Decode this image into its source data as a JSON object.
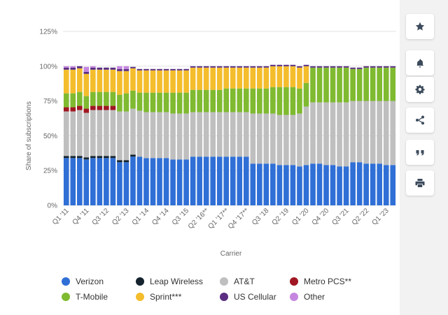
{
  "chart_data": {
    "type": "bar",
    "stacked": true,
    "title": "",
    "xlabel": "Carrier",
    "ylabel": "Share of subscriptions",
    "ylim": [
      0,
      125
    ],
    "yticks": [
      0,
      25,
      50,
      75,
      100,
      125
    ],
    "ytick_labels": [
      "0%",
      "25%",
      "50%",
      "75%",
      "100%",
      "125%"
    ],
    "grid": true,
    "legend_position": "bottom",
    "categories": [
      "Q1 '11",
      "Q2 '11",
      "Q3 '11",
      "Q4 '11",
      "Q1 '12",
      "Q2 '12",
      "Q3 '12",
      "Q4 '12",
      "Q1 '13",
      "Q2 '13",
      "Q3 '13",
      "Q4 '13",
      "Q1 '14",
      "Q2 '14",
      "Q3 '14",
      "Q4 '14",
      "Q1 '15",
      "Q2 '15",
      "Q3 '15",
      "Q4 '15",
      "Q1 '16",
      "Q2 '16**",
      "Q3 '16",
      "Q4 '16",
      "Q1 '17**",
      "Q2 '17",
      "Q3 '17",
      "Q4 '17**",
      "Q1 '18",
      "Q2 '18",
      "Q3 '18",
      "Q4 '18",
      "Q1 '19",
      "Q2 '19",
      "Q3 '19",
      "Q4 '19",
      "Q1 '20",
      "Q2 '20",
      "Q3 '20",
      "Q4 '20",
      "Q1 '21",
      "Q2 '21",
      "Q3 '21",
      "Q4 '21",
      "Q1 '22",
      "Q2 '22",
      "Q3 '22",
      "Q4 '22",
      "Q1 '23",
      "Q2 '23"
    ],
    "x_tick_labels": [
      "Q1 '11",
      "Q4 '11",
      "Q3 '12",
      "Q2 '13",
      "Q1 '14",
      "Q4 '14",
      "Q3 '15",
      "Q2 '16**",
      "Q1 '17**",
      "Q4 '17**",
      "Q3 '18",
      "Q2 '19",
      "Q1 '20",
      "Q4 '20",
      "Q3 '21",
      "Q2 '22",
      "Q1 '23"
    ],
    "series": [
      {
        "name": "Verizon",
        "color": "#2f6fd6",
        "values": [
          34,
          34,
          34,
          33,
          34,
          34,
          34,
          34,
          31,
          31,
          35,
          35,
          34,
          34,
          34,
          34,
          33,
          33,
          33,
          35,
          35,
          35,
          35,
          35,
          35,
          35,
          35,
          35,
          30,
          30,
          30,
          30,
          29,
          29,
          29,
          28,
          29,
          30,
          30,
          29,
          29,
          28,
          28,
          31,
          31,
          30,
          30,
          30,
          29,
          29
        ]
      },
      {
        "name": "Leap Wireless",
        "color": "#14232e",
        "values": [
          1.5,
          1.5,
          1.5,
          1.5,
          1.5,
          1.5,
          1.5,
          1.5,
          1.5,
          1.5,
          1.5,
          0,
          0,
          0,
          0,
          0,
          0,
          0,
          0,
          0,
          0,
          0,
          0,
          0,
          0,
          0,
          0,
          0,
          0,
          0,
          0,
          0,
          0,
          0,
          0,
          0,
          0,
          0,
          0,
          0,
          0,
          0,
          0,
          0,
          0,
          0,
          0,
          0,
          0,
          0
        ]
      },
      {
        "name": "AT&T",
        "color": "#bfbfbf",
        "values": [
          32,
          32,
          33,
          32,
          33,
          33,
          33,
          33,
          35,
          35,
          33,
          33,
          33,
          33,
          33,
          33,
          33,
          33,
          33,
          32,
          32,
          32,
          32,
          32,
          32,
          32,
          32,
          32,
          36,
          36,
          36,
          36,
          36,
          36,
          36,
          38,
          42,
          44,
          44,
          45,
          45,
          46,
          46,
          44,
          44,
          45,
          45,
          45,
          46,
          46
        ]
      },
      {
        "name": "Metro PCS**",
        "color": "#a01622",
        "values": [
          3,
          3,
          3,
          3,
          3,
          3,
          3,
          3,
          0,
          0,
          0,
          0,
          0,
          0,
          0,
          0,
          0,
          0,
          0,
          0,
          0,
          0,
          0,
          0,
          0,
          0,
          0,
          0,
          0,
          0,
          0,
          0,
          0,
          0,
          0,
          0,
          0,
          0,
          0,
          0,
          0,
          0,
          0,
          0,
          0,
          0,
          0,
          0,
          0,
          0
        ]
      },
      {
        "name": "T-Mobile",
        "color": "#7fba30",
        "values": [
          10,
          10,
          10,
          9,
          10,
          10,
          10,
          10,
          12,
          13,
          13,
          13,
          14,
          14,
          14,
          14,
          15,
          15,
          15,
          16,
          16,
          16,
          16,
          16,
          17,
          17,
          17,
          17,
          18,
          18,
          18,
          19,
          20,
          20,
          20,
          18,
          17,
          25,
          25,
          25,
          25,
          25,
          25,
          23,
          23,
          24,
          24,
          24,
          24,
          24
        ]
      },
      {
        "name": "Sprint***",
        "color": "#f4bd2c",
        "values": [
          17,
          17,
          17,
          16,
          16,
          16,
          16,
          16,
          17,
          16,
          16,
          16,
          16,
          16,
          16,
          16,
          16,
          16,
          16,
          16,
          16,
          16,
          16,
          16,
          15,
          15,
          15,
          15,
          15,
          15,
          15,
          15,
          15,
          15,
          15,
          15,
          12,
          0,
          0,
          0,
          0,
          0,
          0,
          0,
          0,
          0,
          0,
          0,
          0,
          0
        ]
      },
      {
        "name": "US Cellular",
        "color": "#5a2e82",
        "values": [
          1.5,
          1.5,
          1.5,
          1.5,
          1.5,
          1.5,
          1.5,
          1.5,
          1.5,
          1.5,
          1,
          1,
          1,
          1,
          1,
          1,
          1,
          1,
          1,
          1,
          1,
          1,
          1,
          1,
          1,
          1,
          1,
          1,
          1,
          1,
          1,
          1,
          1,
          1,
          1,
          1,
          1,
          1,
          1,
          1,
          1,
          1,
          1,
          1,
          1,
          1,
          1,
          1,
          1,
          1
        ]
      },
      {
        "name": "Other",
        "color": "#c586e0",
        "values": [
          1,
          1,
          0,
          3.5,
          1,
          0,
          0,
          0,
          2,
          2,
          0,
          0,
          0,
          0,
          0,
          0,
          0,
          0,
          0,
          0,
          0,
          0,
          0,
          0,
          0,
          0,
          0,
          0,
          0,
          0,
          0,
          0,
          0,
          0,
          0,
          0,
          0,
          0,
          0,
          0,
          0,
          0,
          0,
          0,
          0,
          0,
          0,
          0,
          0,
          0
        ]
      }
    ]
  },
  "legend": [
    {
      "label": "Verizon",
      "color": "#2f6fd6"
    },
    {
      "label": "Leap Wireless",
      "color": "#14232e"
    },
    {
      "label": "AT&T",
      "color": "#bfbfbf"
    },
    {
      "label": "Metro PCS**",
      "color": "#a01622"
    },
    {
      "label": "T-Mobile",
      "color": "#7fba30"
    },
    {
      "label": "Sprint***",
      "color": "#f4bd2c"
    },
    {
      "label": "US Cellular",
      "color": "#5a2e82"
    },
    {
      "label": "Other",
      "color": "#c586e0"
    }
  ],
  "toolbar": [
    {
      "name": "favorite-button",
      "icon": "star-icon"
    },
    {
      "name": "notification-button",
      "icon": "bell-icon"
    },
    {
      "name": "settings-button",
      "icon": "gear-icon"
    },
    {
      "name": "share-button",
      "icon": "share-icon"
    },
    {
      "name": "cite-button",
      "icon": "quote-icon"
    },
    {
      "name": "print-button",
      "icon": "printer-icon"
    }
  ]
}
